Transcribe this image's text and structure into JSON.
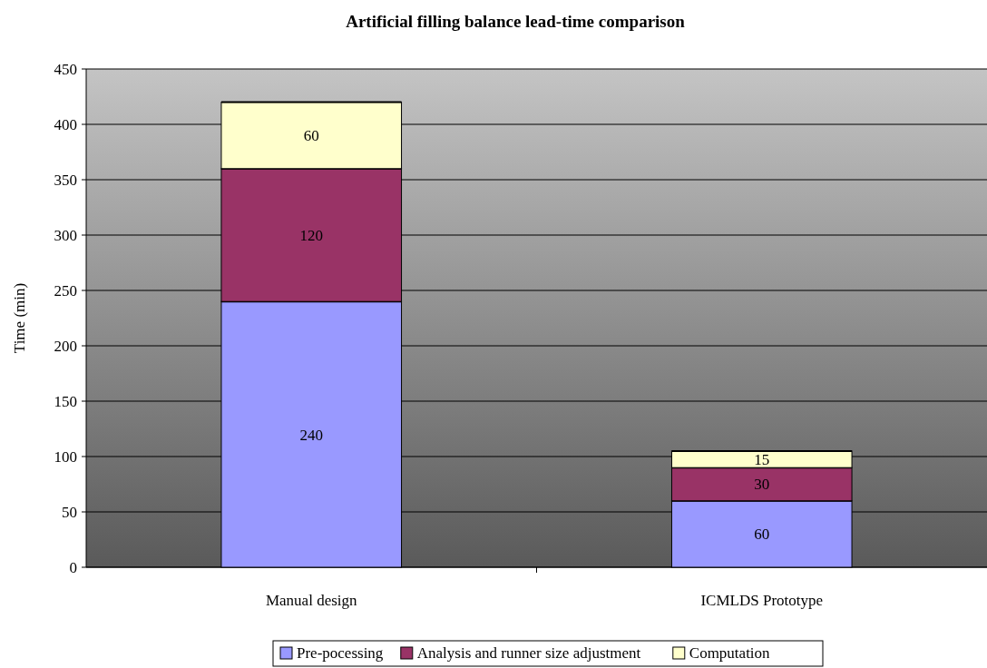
{
  "chart_data": {
    "type": "bar",
    "title": "Artificial filling balance lead-time comparison",
    "ylabel": "Time (min)",
    "categories": [
      "Manual design",
      "ICMLDS Prototype"
    ],
    "stacked": true,
    "series": [
      {
        "name": "Pre-pocessing",
        "color": "#9999ff",
        "values": [
          240,
          60
        ]
      },
      {
        "name": "Analysis and runner size adjustment",
        "color": "#993366",
        "values": [
          120,
          30
        ]
      },
      {
        "name": "Computation",
        "color": "#ffffcc",
        "values": [
          60,
          15
        ]
      }
    ],
    "ylim": [
      0,
      450
    ],
    "yticks": [
      0,
      50,
      100,
      150,
      200,
      250,
      300,
      350,
      400,
      450
    ],
    "grid": "y",
    "legend": "bottom",
    "data_labels": true
  }
}
